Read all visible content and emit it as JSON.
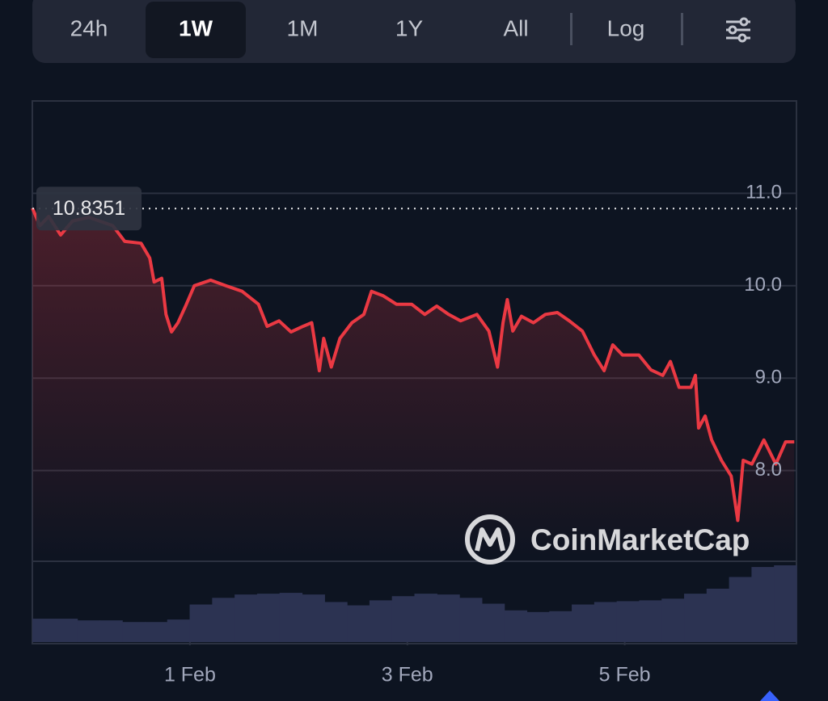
{
  "tabs": [
    "24h",
    "1W",
    "1M",
    "1Y",
    "All"
  ],
  "selected_tab": 1,
  "log_button": "Log",
  "watermark": "CoinMarketCap",
  "chart_data": {
    "type": "line",
    "x": [
      -0.45,
      -0.38,
      -0.3,
      -0.19,
      -0.08,
      0.07,
      0.29,
      0.4,
      0.55,
      0.63,
      0.67,
      0.74,
      0.78,
      0.83,
      0.89,
      0.96,
      1.04,
      1.19,
      1.33,
      1.48,
      1.63,
      1.71,
      1.82,
      1.93,
      2.04,
      2.12,
      2.19,
      2.23,
      2.3,
      2.38,
      2.49,
      2.6,
      2.67,
      2.78,
      2.9,
      3.04,
      3.16,
      3.27,
      3.38,
      3.49,
      3.64,
      3.75,
      3.83,
      3.88,
      3.92,
      3.97,
      4.05,
      4.16,
      4.27,
      4.38,
      4.49,
      4.61,
      4.72,
      4.81,
      4.89,
      4.98,
      5.13,
      5.24,
      5.35,
      5.42,
      5.5,
      5.61,
      5.65,
      5.68,
      5.74,
      5.8,
      5.89,
      5.98,
      6.04,
      6.09,
      6.17,
      6.28,
      6.39,
      6.48,
      6.56
    ],
    "series": [
      {
        "color": "#ea3943",
        "values": [
          10.84,
          10.65,
          10.75,
          10.55,
          10.7,
          10.74,
          10.65,
          10.48,
          10.46,
          10.3,
          10.04,
          10.08,
          9.69,
          9.5,
          9.6,
          9.78,
          10.0,
          10.06,
          10.0,
          9.94,
          9.8,
          9.56,
          9.62,
          9.5,
          9.56,
          9.6,
          9.08,
          9.43,
          9.12,
          9.43,
          9.6,
          9.69,
          9.94,
          9.89,
          9.8,
          9.8,
          9.69,
          9.78,
          9.69,
          9.62,
          9.69,
          9.51,
          9.12,
          9.6,
          9.85,
          9.51,
          9.67,
          9.6,
          9.69,
          9.71,
          9.62,
          9.51,
          9.25,
          9.08,
          9.36,
          9.25,
          9.25,
          9.09,
          9.03,
          9.18,
          8.9,
          8.9,
          9.03,
          8.46,
          8.59,
          8.33,
          8.11,
          7.94,
          7.46,
          8.11,
          8.07,
          8.33,
          8.07,
          8.31,
          8.31
        ]
      }
    ],
    "reference_value": 10.8351,
    "volume": {
      "color": "#2c3352",
      "values": [
        28,
        28,
        26,
        26,
        24,
        24,
        27,
        45,
        53,
        57,
        58,
        59,
        57,
        48,
        44,
        50,
        55,
        58,
        57,
        53,
        46,
        38,
        36,
        37,
        45,
        48,
        49,
        50,
        52,
        58,
        64,
        78,
        90,
        92
      ]
    },
    "xlim": [
      -0.45,
      6.58
    ],
    "xticks": [
      {
        "value": 1,
        "label": "1 Feb"
      },
      {
        "value": 3,
        "label": "3 Feb"
      },
      {
        "value": 5,
        "label": "5 Feb"
      }
    ],
    "ylim": [
      7,
      12
    ],
    "yticks": [
      {
        "value": 11,
        "label": "11.0"
      },
      {
        "value": 10,
        "label": "10.0"
      },
      {
        "value": 9,
        "label": "9.0"
      },
      {
        "value": 8,
        "label": "8.0"
      }
    ],
    "grid": true
  }
}
